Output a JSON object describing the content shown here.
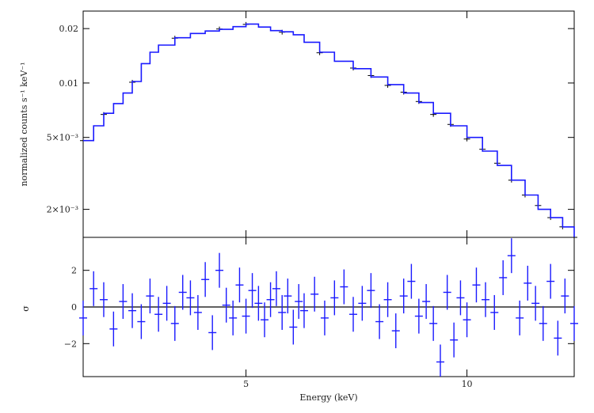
{
  "chart_data": [
    {
      "type": "line",
      "panel": "spectrum",
      "ylabel": "normalized counts s⁻¹ keV⁻¹",
      "yscale": "log",
      "ylim": [
        0.0014,
        0.025
      ],
      "xscale": "log",
      "xlim": [
        3.0,
        14.0
      ],
      "yticks": [
        {
          "value": 0.02,
          "label": "0.02"
        },
        {
          "value": 0.01,
          "label": "0.01"
        },
        {
          "value": 0.005,
          "label": "5×10⁻³"
        },
        {
          "value": 0.002,
          "label": "2×10⁻³"
        }
      ],
      "series": [
        {
          "role": "model",
          "color": "#1a1aff",
          "x": [
            3.0,
            3.1,
            3.2,
            3.3,
            3.4,
            3.5,
            3.6,
            3.7,
            3.8,
            4.0,
            4.2,
            4.4,
            4.6,
            4.8,
            5.0,
            5.2,
            5.4,
            5.6,
            5.8,
            6.0,
            6.3,
            6.6,
            7.0,
            7.4,
            7.8,
            8.2,
            8.6,
            9.0,
            9.5,
            10.0,
            10.5,
            11.0,
            11.5,
            12.0,
            12.5,
            13.0,
            13.5,
            14.0
          ],
          "y": [
            0.0048,
            0.0058,
            0.0068,
            0.0077,
            0.0088,
            0.0102,
            0.0128,
            0.0148,
            0.0162,
            0.0178,
            0.0188,
            0.0194,
            0.0198,
            0.0205,
            0.0212,
            0.0204,
            0.0195,
            0.0192,
            0.0185,
            0.0168,
            0.0148,
            0.0132,
            0.012,
            0.0108,
            0.0098,
            0.0088,
            0.0078,
            0.0068,
            0.0058,
            0.005,
            0.0042,
            0.0035,
            0.0029,
            0.0024,
            0.002,
            0.0018,
            0.0016,
            0.0014
          ]
        },
        {
          "role": "data",
          "color": "#000000",
          "x": [
            3.0,
            3.2,
            3.5,
            4.0,
            4.6,
            5.0,
            5.6,
            6.3,
            7.0,
            7.4,
            7.8,
            8.2,
            8.6,
            9.0,
            9.5,
            10.0,
            10.5,
            11.0,
            11.5,
            12.0,
            12.5,
            13.0,
            13.5,
            14.0
          ],
          "y": [
            0.0048,
            0.0067,
            0.0101,
            0.0177,
            0.0199,
            0.0211,
            0.0191,
            0.0147,
            0.0121,
            0.011,
            0.0097,
            0.0089,
            0.0079,
            0.0067,
            0.0059,
            0.0049,
            0.0043,
            0.0036,
            0.0029,
            0.0024,
            0.0021,
            0.0018,
            0.0016,
            0.0014
          ]
        }
      ]
    },
    {
      "type": "scatter",
      "panel": "residuals",
      "xlabel": "Energy (keV)",
      "ylabel": "σ",
      "xscale": "log",
      "xlim": [
        3.0,
        14.0
      ],
      "ylim": [
        -3.8,
        3.8
      ],
      "xticks": [
        {
          "value": 5,
          "label": "5"
        },
        {
          "value": 10,
          "label": "10"
        }
      ],
      "yticks": [
        {
          "value": 2,
          "label": "2"
        },
        {
          "value": 0,
          "label": "0"
        },
        {
          "value": -2,
          "label": "−2"
        }
      ],
      "zero_line": 0,
      "series": [
        {
          "role": "residuals",
          "color": "#1a1aff",
          "x": [
            3.0,
            3.1,
            3.2,
            3.3,
            3.4,
            3.5,
            3.6,
            3.7,
            3.8,
            3.9,
            4.0,
            4.1,
            4.2,
            4.3,
            4.4,
            4.5,
            4.6,
            4.7,
            4.8,
            4.9,
            5.0,
            5.1,
            5.2,
            5.3,
            5.4,
            5.5,
            5.6,
            5.7,
            5.8,
            5.9,
            6.0,
            6.2,
            6.4,
            6.6,
            6.8,
            7.0,
            7.2,
            7.4,
            7.6,
            7.8,
            8.0,
            8.2,
            8.4,
            8.6,
            8.8,
            9.0,
            9.2,
            9.4,
            9.6,
            9.8,
            10.0,
            10.3,
            10.6,
            10.9,
            11.2,
            11.5,
            11.8,
            12.1,
            12.4,
            12.7,
            13.0,
            13.3,
            13.6,
            14.0
          ],
          "y": [
            -0.6,
            1.0,
            0.4,
            -1.2,
            0.3,
            -0.2,
            -0.8,
            0.6,
            -0.4,
            0.2,
            -0.9,
            0.8,
            0.5,
            -0.3,
            1.5,
            -1.4,
            2.0,
            0.1,
            -0.6,
            1.2,
            -0.5,
            0.9,
            0.2,
            -0.7,
            0.4,
            1.0,
            -0.3,
            0.6,
            -1.1,
            0.3,
            -0.2,
            0.7,
            -0.6,
            0.5,
            1.1,
            -0.4,
            0.2,
            0.9,
            -0.8,
            0.4,
            -1.3,
            0.6,
            1.4,
            -0.5,
            0.3,
            -0.9,
            -3.0,
            0.8,
            -1.8,
            0.5,
            -0.7,
            1.2,
            0.4,
            -0.3,
            1.6,
            2.8,
            -0.6,
            1.3,
            0.2,
            -0.9,
            1.4,
            -1.7,
            0.6,
            -0.9
          ],
          "err": 0.95
        }
      ]
    }
  ]
}
